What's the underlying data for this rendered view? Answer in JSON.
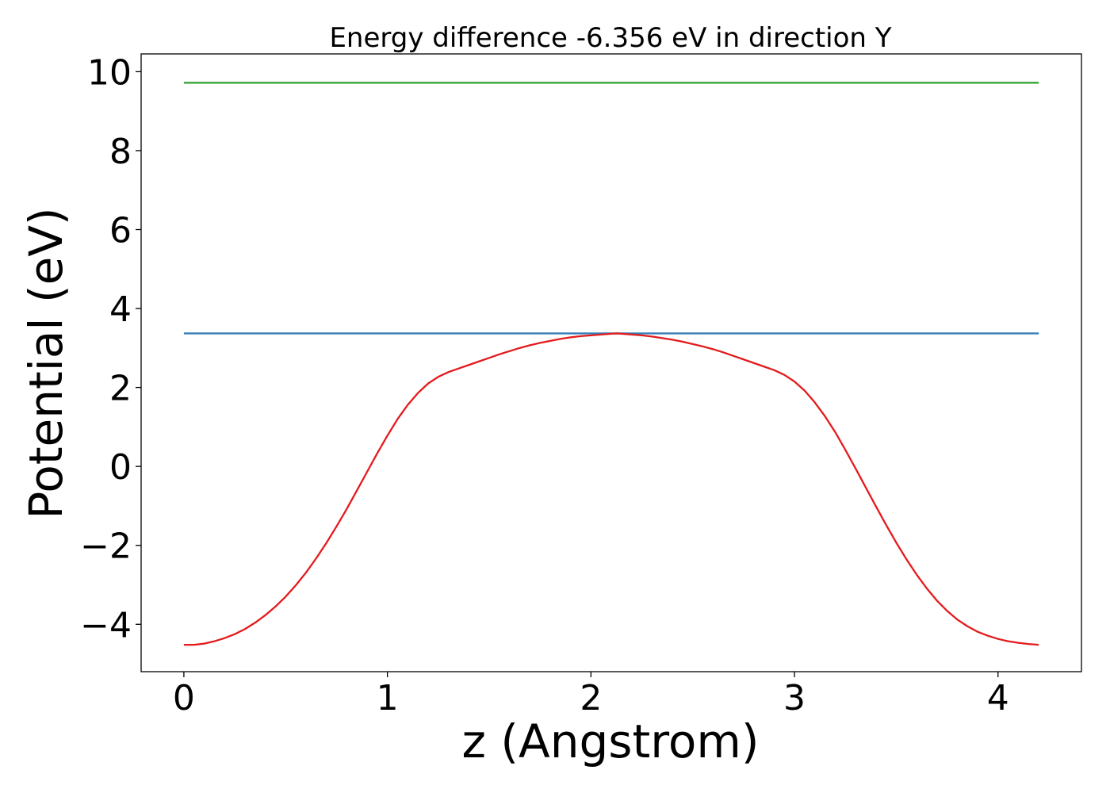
{
  "chart_data": {
    "type": "line",
    "title": "Energy difference -6.356 eV in direction Y",
    "xlabel": "z (Angstrom)",
    "ylabel": "Potential (eV)",
    "xlim": [
      -0.21,
      4.41
    ],
    "ylim": [
      -5.2,
      10.45
    ],
    "xticks": [
      0,
      1,
      2,
      3,
      4
    ],
    "xtick_labels": [
      "0",
      "1",
      "2",
      "3",
      "4"
    ],
    "yticks": [
      -4,
      -2,
      0,
      2,
      4,
      6,
      8,
      10
    ],
    "ytick_labels": [
      "−4",
      "−2",
      "0",
      "2",
      "4",
      "6",
      "8",
      "10"
    ],
    "grid": false,
    "legend": "none",
    "series": [
      {
        "color": "#2ca02c",
        "x": [
          0,
          4.2
        ],
        "y": [
          9.72,
          9.72
        ]
      },
      {
        "color": "#377eb8",
        "x": [
          0,
          4.2
        ],
        "y": [
          3.37,
          3.37
        ]
      },
      {
        "color": "#e41a1c",
        "x": [
          0,
          0.05,
          0.1,
          0.15,
          0.2,
          0.25,
          0.3,
          0.35,
          0.4,
          0.45,
          0.5,
          0.55,
          0.6,
          0.65,
          0.7,
          0.75,
          0.8,
          0.85,
          0.9,
          0.95,
          1.0,
          1.05,
          1.1,
          1.15,
          1.2,
          1.25,
          1.3,
          1.35,
          1.4,
          1.45,
          1.5,
          1.55,
          1.6,
          1.65,
          1.7,
          1.75,
          1.8,
          1.85,
          1.9,
          1.95,
          2.0,
          2.05,
          2.1,
          2.13,
          2.15,
          2.2,
          2.25,
          2.3,
          2.35,
          2.4,
          2.45,
          2.5,
          2.55,
          2.6,
          2.65,
          2.7,
          2.75,
          2.8,
          2.85,
          2.9,
          2.95,
          3.0,
          3.05,
          3.1,
          3.15,
          3.2,
          3.25,
          3.3,
          3.35,
          3.4,
          3.45,
          3.5,
          3.55,
          3.6,
          3.65,
          3.7,
          3.75,
          3.8,
          3.85,
          3.9,
          3.95,
          4.0,
          4.05,
          4.1,
          4.15,
          4.2
        ],
        "y": [
          -4.52,
          -4.52,
          -4.49,
          -4.43,
          -4.35,
          -4.25,
          -4.12,
          -3.96,
          -3.77,
          -3.55,
          -3.3,
          -3.01,
          -2.69,
          -2.33,
          -1.94,
          -1.52,
          -1.08,
          -0.61,
          -0.14,
          0.33,
          0.78,
          1.2,
          1.56,
          1.86,
          2.1,
          2.27,
          2.39,
          2.48,
          2.57,
          2.66,
          2.75,
          2.84,
          2.92,
          3.0,
          3.07,
          3.13,
          3.18,
          3.23,
          3.27,
          3.3,
          3.32,
          3.34,
          3.36,
          3.37,
          3.36,
          3.34,
          3.32,
          3.29,
          3.25,
          3.21,
          3.16,
          3.1,
          3.04,
          2.97,
          2.89,
          2.8,
          2.71,
          2.62,
          2.53,
          2.44,
          2.32,
          2.15,
          1.92,
          1.62,
          1.27,
          0.87,
          0.42,
          -0.05,
          -0.53,
          -1.01,
          -1.48,
          -1.93,
          -2.35,
          -2.74,
          -3.09,
          -3.4,
          -3.66,
          -3.88,
          -4.05,
          -4.19,
          -4.29,
          -4.37,
          -4.43,
          -4.47,
          -4.5,
          -4.52
        ]
      }
    ]
  }
}
